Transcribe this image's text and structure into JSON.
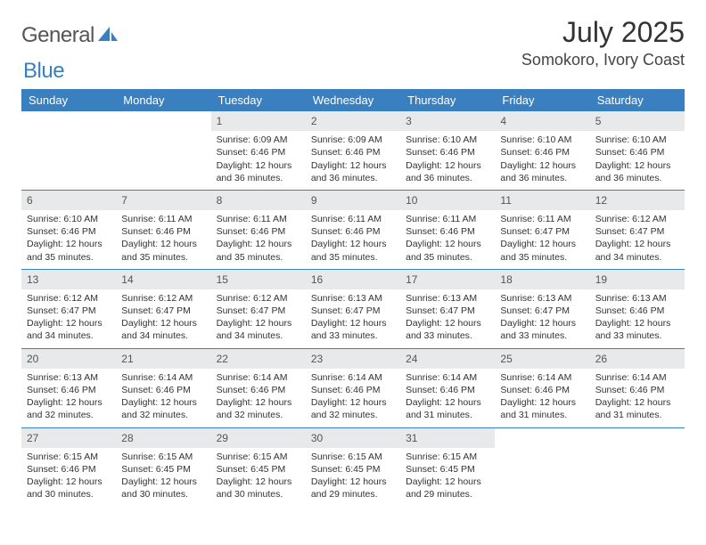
{
  "logo": {
    "text_general": "General",
    "text_blue": "Blue",
    "shape_color": "#3a7fbf"
  },
  "header": {
    "month_title": "July 2025",
    "location": "Somokoro, Ivory Coast"
  },
  "colors": {
    "header_bg": "#3a7fbf",
    "header_text": "#ffffff",
    "daynum_bg": "#e8e9ea",
    "week_border": "#3a7fbf"
  },
  "day_names": [
    "Sunday",
    "Monday",
    "Tuesday",
    "Wednesday",
    "Thursday",
    "Friday",
    "Saturday"
  ],
  "weeks": [
    [
      {
        "empty": true
      },
      {
        "empty": true
      },
      {
        "day": "1",
        "sunrise": "Sunrise: 6:09 AM",
        "sunset": "Sunset: 6:46 PM",
        "daylight": "Daylight: 12 hours and 36 minutes."
      },
      {
        "day": "2",
        "sunrise": "Sunrise: 6:09 AM",
        "sunset": "Sunset: 6:46 PM",
        "daylight": "Daylight: 12 hours and 36 minutes."
      },
      {
        "day": "3",
        "sunrise": "Sunrise: 6:10 AM",
        "sunset": "Sunset: 6:46 PM",
        "daylight": "Daylight: 12 hours and 36 minutes."
      },
      {
        "day": "4",
        "sunrise": "Sunrise: 6:10 AM",
        "sunset": "Sunset: 6:46 PM",
        "daylight": "Daylight: 12 hours and 36 minutes."
      },
      {
        "day": "5",
        "sunrise": "Sunrise: 6:10 AM",
        "sunset": "Sunset: 6:46 PM",
        "daylight": "Daylight: 12 hours and 36 minutes."
      }
    ],
    [
      {
        "day": "6",
        "sunrise": "Sunrise: 6:10 AM",
        "sunset": "Sunset: 6:46 PM",
        "daylight": "Daylight: 12 hours and 35 minutes."
      },
      {
        "day": "7",
        "sunrise": "Sunrise: 6:11 AM",
        "sunset": "Sunset: 6:46 PM",
        "daylight": "Daylight: 12 hours and 35 minutes."
      },
      {
        "day": "8",
        "sunrise": "Sunrise: 6:11 AM",
        "sunset": "Sunset: 6:46 PM",
        "daylight": "Daylight: 12 hours and 35 minutes."
      },
      {
        "day": "9",
        "sunrise": "Sunrise: 6:11 AM",
        "sunset": "Sunset: 6:46 PM",
        "daylight": "Daylight: 12 hours and 35 minutes."
      },
      {
        "day": "10",
        "sunrise": "Sunrise: 6:11 AM",
        "sunset": "Sunset: 6:46 PM",
        "daylight": "Daylight: 12 hours and 35 minutes."
      },
      {
        "day": "11",
        "sunrise": "Sunrise: 6:11 AM",
        "sunset": "Sunset: 6:47 PM",
        "daylight": "Daylight: 12 hours and 35 minutes."
      },
      {
        "day": "12",
        "sunrise": "Sunrise: 6:12 AM",
        "sunset": "Sunset: 6:47 PM",
        "daylight": "Daylight: 12 hours and 34 minutes."
      }
    ],
    [
      {
        "day": "13",
        "sunrise": "Sunrise: 6:12 AM",
        "sunset": "Sunset: 6:47 PM",
        "daylight": "Daylight: 12 hours and 34 minutes."
      },
      {
        "day": "14",
        "sunrise": "Sunrise: 6:12 AM",
        "sunset": "Sunset: 6:47 PM",
        "daylight": "Daylight: 12 hours and 34 minutes."
      },
      {
        "day": "15",
        "sunrise": "Sunrise: 6:12 AM",
        "sunset": "Sunset: 6:47 PM",
        "daylight": "Daylight: 12 hours and 34 minutes."
      },
      {
        "day": "16",
        "sunrise": "Sunrise: 6:13 AM",
        "sunset": "Sunset: 6:47 PM",
        "daylight": "Daylight: 12 hours and 33 minutes."
      },
      {
        "day": "17",
        "sunrise": "Sunrise: 6:13 AM",
        "sunset": "Sunset: 6:47 PM",
        "daylight": "Daylight: 12 hours and 33 minutes."
      },
      {
        "day": "18",
        "sunrise": "Sunrise: 6:13 AM",
        "sunset": "Sunset: 6:47 PM",
        "daylight": "Daylight: 12 hours and 33 minutes."
      },
      {
        "day": "19",
        "sunrise": "Sunrise: 6:13 AM",
        "sunset": "Sunset: 6:46 PM",
        "daylight": "Daylight: 12 hours and 33 minutes."
      }
    ],
    [
      {
        "day": "20",
        "sunrise": "Sunrise: 6:13 AM",
        "sunset": "Sunset: 6:46 PM",
        "daylight": "Daylight: 12 hours and 32 minutes."
      },
      {
        "day": "21",
        "sunrise": "Sunrise: 6:14 AM",
        "sunset": "Sunset: 6:46 PM",
        "daylight": "Daylight: 12 hours and 32 minutes."
      },
      {
        "day": "22",
        "sunrise": "Sunrise: 6:14 AM",
        "sunset": "Sunset: 6:46 PM",
        "daylight": "Daylight: 12 hours and 32 minutes."
      },
      {
        "day": "23",
        "sunrise": "Sunrise: 6:14 AM",
        "sunset": "Sunset: 6:46 PM",
        "daylight": "Daylight: 12 hours and 32 minutes."
      },
      {
        "day": "24",
        "sunrise": "Sunrise: 6:14 AM",
        "sunset": "Sunset: 6:46 PM",
        "daylight": "Daylight: 12 hours and 31 minutes."
      },
      {
        "day": "25",
        "sunrise": "Sunrise: 6:14 AM",
        "sunset": "Sunset: 6:46 PM",
        "daylight": "Daylight: 12 hours and 31 minutes."
      },
      {
        "day": "26",
        "sunrise": "Sunrise: 6:14 AM",
        "sunset": "Sunset: 6:46 PM",
        "daylight": "Daylight: 12 hours and 31 minutes."
      }
    ],
    [
      {
        "day": "27",
        "sunrise": "Sunrise: 6:15 AM",
        "sunset": "Sunset: 6:46 PM",
        "daylight": "Daylight: 12 hours and 30 minutes."
      },
      {
        "day": "28",
        "sunrise": "Sunrise: 6:15 AM",
        "sunset": "Sunset: 6:45 PM",
        "daylight": "Daylight: 12 hours and 30 minutes."
      },
      {
        "day": "29",
        "sunrise": "Sunrise: 6:15 AM",
        "sunset": "Sunset: 6:45 PM",
        "daylight": "Daylight: 12 hours and 30 minutes."
      },
      {
        "day": "30",
        "sunrise": "Sunrise: 6:15 AM",
        "sunset": "Sunset: 6:45 PM",
        "daylight": "Daylight: 12 hours and 29 minutes."
      },
      {
        "day": "31",
        "sunrise": "Sunrise: 6:15 AM",
        "sunset": "Sunset: 6:45 PM",
        "daylight": "Daylight: 12 hours and 29 minutes."
      },
      {
        "empty": true
      },
      {
        "empty": true
      }
    ]
  ]
}
